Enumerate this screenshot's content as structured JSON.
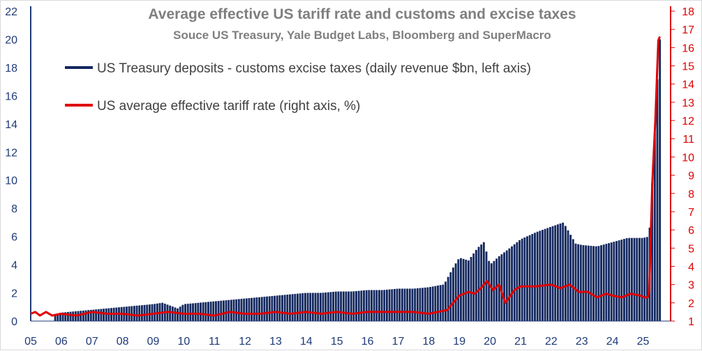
{
  "chart_data": {
    "type": "bar-line-dual-axis",
    "title": "Average effective US tariff rate and customs and excise taxes",
    "subtitle": "Souce US Treasury, Yale Budget Labs, Bloomberg  and SuperMacro",
    "left_axis": {
      "min": 0,
      "max": 22,
      "ticks": [
        "0",
        "2",
        "4",
        "6",
        "8",
        "10",
        "12",
        "14",
        "16",
        "18",
        "20",
        "22"
      ],
      "color": "#1f3a78"
    },
    "right_axis": {
      "min": 1,
      "max": 18,
      "ticks": [
        "1",
        "2",
        "3",
        "4",
        "5",
        "6",
        "7",
        "8",
        "9",
        "10",
        "11",
        "12",
        "13",
        "14",
        "15",
        "16",
        "17",
        "18"
      ],
      "color": "#e00000"
    },
    "x_axis": {
      "min": 2005,
      "max": 2025.9,
      "labels": [
        "05",
        "06",
        "07",
        "08",
        "09",
        "10",
        "11",
        "12",
        "13",
        "14",
        "15",
        "16",
        "17",
        "18",
        "19",
        "20",
        "21",
        "22",
        "23",
        "24",
        "25"
      ]
    },
    "series": [
      {
        "name": "US Treasury deposits - customs excise taxes (daily revenue $bn, left axis)",
        "axis": "left",
        "kind": "bar",
        "color": "#13285f",
        "x": [
          2005.8,
          2006.0,
          2006.5,
          2007.0,
          2007.5,
          2008.0,
          2008.5,
          2009.0,
          2009.3,
          2009.8,
          2010.0,
          2010.5,
          2011.0,
          2011.5,
          2012.0,
          2012.5,
          2013.0,
          2013.5,
          2014.0,
          2014.5,
          2015.0,
          2015.5,
          2016.0,
          2016.5,
          2017.0,
          2017.5,
          2018.0,
          2018.5,
          2018.8,
          2019.0,
          2019.3,
          2019.6,
          2019.8,
          2020.0,
          2020.3,
          2020.6,
          2021.0,
          2021.5,
          2022.0,
          2022.4,
          2022.8,
          2023.0,
          2023.5,
          2024.0,
          2024.5,
          2025.0,
          2025.2,
          2025.35,
          2025.45,
          2025.55
        ],
        "values": [
          0.5,
          0.6,
          0.7,
          0.8,
          0.9,
          1.0,
          1.1,
          1.2,
          1.3,
          0.9,
          1.2,
          1.3,
          1.4,
          1.5,
          1.6,
          1.7,
          1.8,
          1.9,
          2.0,
          2.0,
          2.1,
          2.1,
          2.2,
          2.2,
          2.3,
          2.3,
          2.4,
          2.6,
          3.8,
          4.5,
          4.3,
          5.2,
          5.6,
          4.0,
          4.6,
          5.1,
          5.8,
          6.3,
          6.7,
          7.0,
          5.5,
          5.4,
          5.3,
          5.6,
          5.9,
          5.9,
          6.0,
          11.7,
          16.6,
          20.0
        ]
      },
      {
        "name": "US average effective tariff rate (right axis, %)",
        "axis": "right",
        "kind": "line",
        "color": "#e00000",
        "x": [
          2005.0,
          2005.15,
          2005.3,
          2005.5,
          2005.7,
          2006.0,
          2006.5,
          2007.0,
          2007.5,
          2008.0,
          2008.5,
          2009.0,
          2009.5,
          2010.0,
          2010.5,
          2011.0,
          2011.5,
          2012.0,
          2012.5,
          2013.0,
          2013.5,
          2014.0,
          2014.5,
          2015.0,
          2015.5,
          2016.0,
          2016.5,
          2017.0,
          2017.5,
          2018.0,
          2018.3,
          2018.6,
          2018.8,
          2019.0,
          2019.3,
          2019.5,
          2019.7,
          2019.9,
          2020.1,
          2020.3,
          2020.5,
          2020.8,
          2021.0,
          2021.5,
          2022.0,
          2022.3,
          2022.6,
          2022.9,
          2023.2,
          2023.5,
          2023.8,
          2024.0,
          2024.3,
          2024.6,
          2024.9,
          2025.05,
          2025.15,
          2025.2,
          2025.3,
          2025.4,
          2025.5,
          2025.55
        ],
        "values": [
          1.4,
          1.5,
          1.3,
          1.5,
          1.3,
          1.4,
          1.3,
          1.5,
          1.4,
          1.4,
          1.3,
          1.4,
          1.5,
          1.4,
          1.4,
          1.3,
          1.5,
          1.4,
          1.4,
          1.5,
          1.4,
          1.5,
          1.4,
          1.5,
          1.4,
          1.5,
          1.5,
          1.5,
          1.5,
          1.4,
          1.5,
          1.6,
          2.0,
          2.4,
          2.6,
          2.5,
          2.8,
          3.2,
          2.7,
          3.0,
          2.0,
          2.7,
          2.9,
          2.9,
          3.0,
          2.8,
          3.0,
          2.6,
          2.6,
          2.3,
          2.5,
          2.4,
          2.3,
          2.5,
          2.4,
          2.3,
          2.3,
          2.6,
          8.5,
          12.0,
          16.4,
          16.6
        ]
      }
    ]
  },
  "legend": [
    {
      "label": "US Treasury deposits - customs excise taxes (daily revenue $bn, left axis)",
      "color": "#13285f"
    },
    {
      "label": "US average effective tariff rate (right axis, %)",
      "color": "#e00000"
    }
  ]
}
